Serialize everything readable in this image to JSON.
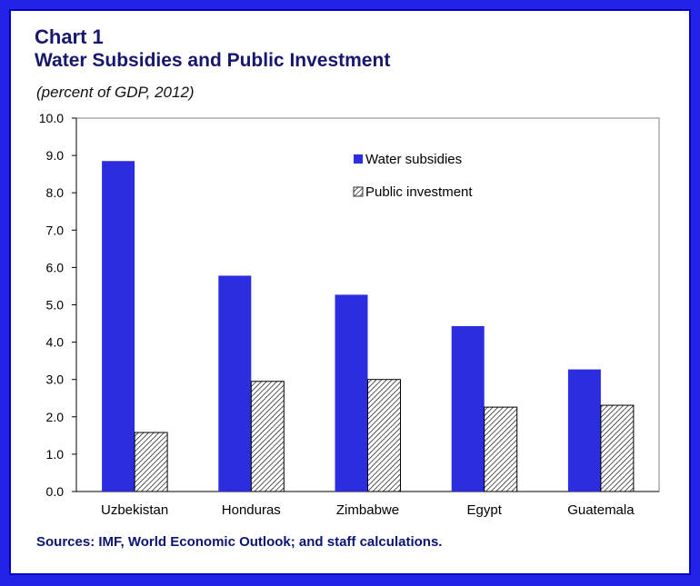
{
  "title_line1": "Chart 1",
  "title_line2": "Water Subsidies and Public Investment",
  "subtitle": "(percent of GDP,  2012)",
  "source": "Sources: IMF, World Economic Outlook; and staff calculations.",
  "colors": {
    "water": "#2d2de0",
    "hatch": "#000000",
    "title": "#17176e",
    "frame": "#2323e6"
  },
  "chart_data": {
    "type": "bar",
    "categories": [
      "Uzbekistan",
      "Honduras",
      "Zimbabwe",
      "Egypt",
      "Guatemala"
    ],
    "series": [
      {
        "name": "Water subsidies",
        "values": [
          8.85,
          5.78,
          5.27,
          4.43,
          3.27
        ]
      },
      {
        "name": "Public investment",
        "values": [
          1.58,
          2.95,
          3.0,
          2.26,
          2.31
        ]
      }
    ],
    "ylim": [
      0,
      10
    ],
    "yticks": [
      "0.0",
      "1.0",
      "2.0",
      "3.0",
      "4.0",
      "5.0",
      "6.0",
      "7.0",
      "8.0",
      "9.0",
      "10.0"
    ],
    "xlabel": "",
    "ylabel": "",
    "legend_position": "top-right",
    "grid": false
  }
}
